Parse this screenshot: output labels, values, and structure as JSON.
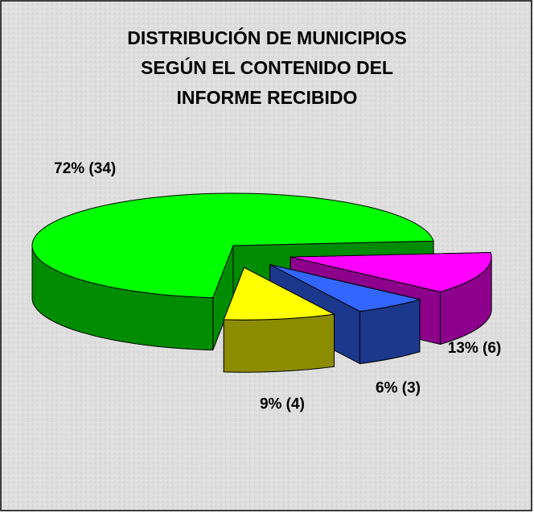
{
  "chart_data": {
    "type": "pie",
    "title": [
      "DISTRIBUCIÓN DE MUNICIPIOS",
      "SEGÚN EL CONTENIDO DEL",
      "INFORME RECIBIDO"
    ],
    "values": [
      13,
      6,
      9,
      72
    ],
    "value_labels": [
      "13% (6)",
      "6% (3)",
      "9% (4)",
      "72% (34)"
    ],
    "colors": [
      "#ff00ff",
      "#3366ff",
      "#ffff00",
      "#00ff00"
    ],
    "three_d": true
  }
}
